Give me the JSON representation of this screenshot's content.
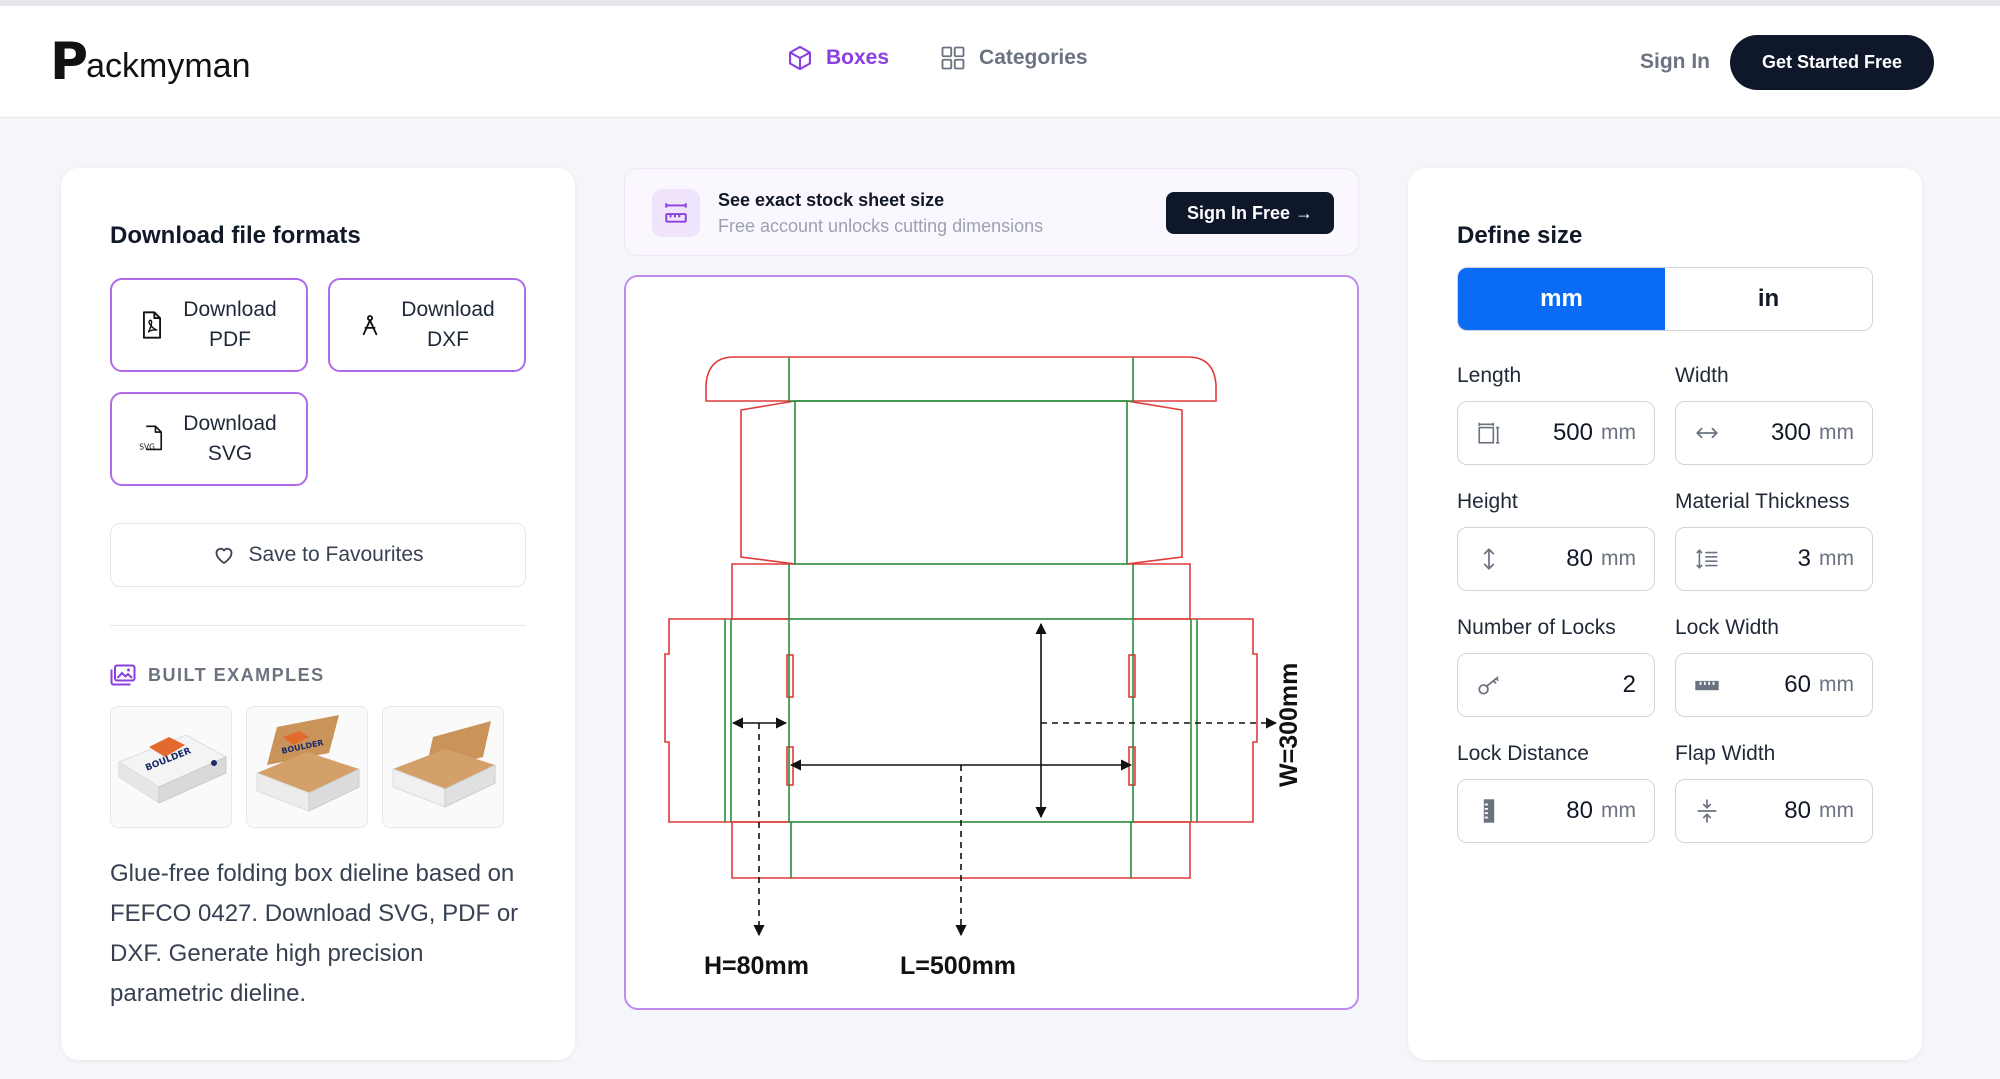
{
  "brand": {
    "logo_mark": "P",
    "logo_text": "ackmyman"
  },
  "nav": [
    {
      "label": "Boxes",
      "icon": "cube-icon",
      "active": true
    },
    {
      "label": "Categories",
      "icon": "grid-icon",
      "active": false
    }
  ],
  "header": {
    "signin_label": "Sign In",
    "cta_label": "Get Started Free"
  },
  "downloads": {
    "title": "Download file formats",
    "pdf_label": "Download PDF",
    "dxf_label": "Download DXF",
    "svg_label": "Download SVG",
    "fav_label": "Save to Favourites",
    "svg_icon_text": "SVG"
  },
  "examples": {
    "title": "BUILT EXAMPLES",
    "box_brand": "BOULDER",
    "description": "Glue-free folding box dieline based on FEFCO 0427. Download SVG, PDF or DXF. Generate high precision parametric dieline."
  },
  "banner": {
    "title": "See exact stock sheet size",
    "subtitle": "Free account unlocks cutting dimensions",
    "button_label": "Sign In Free →"
  },
  "dieline": {
    "height_label": "H=80mm",
    "length_label": "L=500mm",
    "width_label": "W=300mm",
    "cut_color": "#e03a3a",
    "crease_color": "#2e8b3a"
  },
  "define": {
    "title": "Define size",
    "units": [
      "mm",
      "in"
    ],
    "active_unit": "mm",
    "fields": {
      "length": {
        "label": "Length",
        "value": "500",
        "unit": "mm"
      },
      "width": {
        "label": "Width",
        "value": "300",
        "unit": "mm"
      },
      "height": {
        "label": "Height",
        "value": "80",
        "unit": "mm"
      },
      "thickness": {
        "label": "Material Thickness",
        "value": "3",
        "unit": "mm"
      },
      "locks": {
        "label": "Number of Locks",
        "value": "2"
      },
      "lock_width": {
        "label": "Lock Width",
        "value": "60",
        "unit": "mm"
      },
      "lock_distance": {
        "label": "Lock Distance",
        "value": "80",
        "unit": "mm"
      },
      "flap_width": {
        "label": "Flap Width",
        "value": "80",
        "unit": "mm"
      }
    }
  },
  "colors": {
    "accent": "#8b3fe0",
    "dark": "#0f172a",
    "unit_active": "#0a6cf5"
  }
}
